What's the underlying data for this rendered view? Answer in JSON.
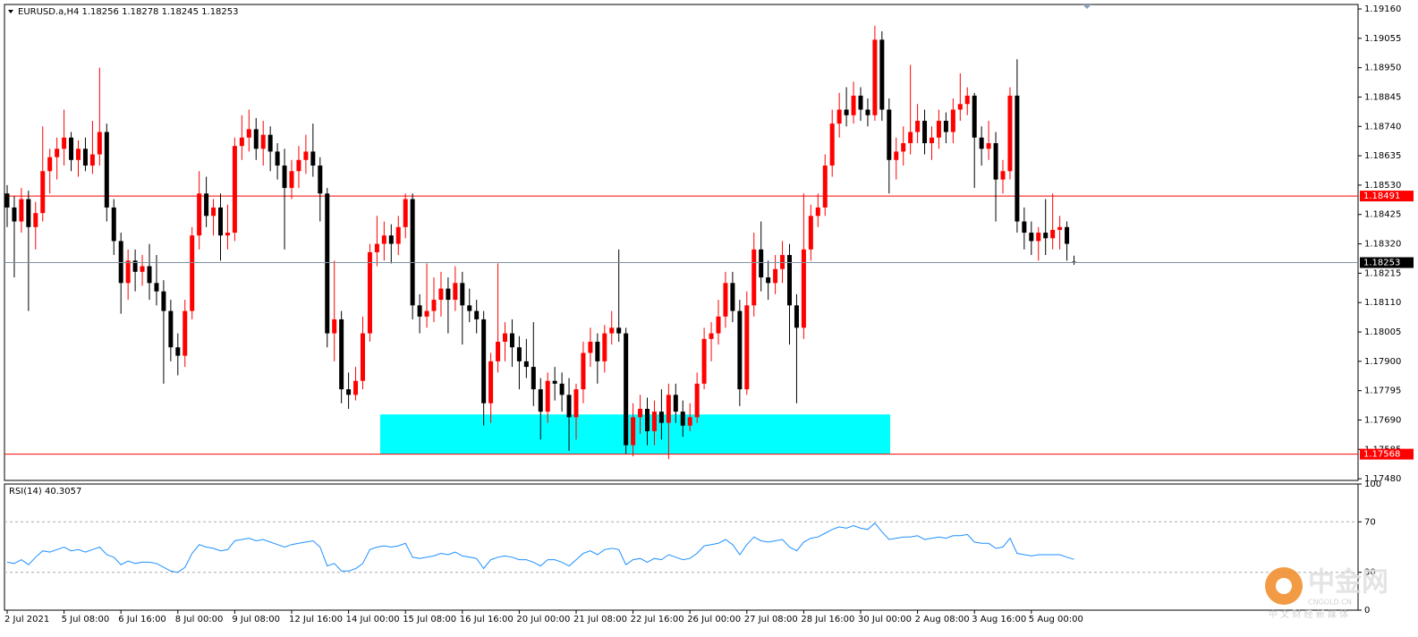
{
  "chart_data": {
    "type": "candlestick",
    "symbol": "EURUSD.a,H4",
    "up_color": "#ff0000",
    "down_color": "#000000",
    "ylim": [
      1.17474,
      1.19176
    ],
    "yticks": [
      {
        "value": 1.1916,
        "label": "1.19160"
      },
      {
        "value": 1.19055,
        "label": "1.19055"
      },
      {
        "value": 1.1895,
        "label": "1.18950"
      },
      {
        "value": 1.18845,
        "label": "1.18845"
      },
      {
        "value": 1.1874,
        "label": "1.18740"
      },
      {
        "value": 1.18635,
        "label": "1.18635"
      },
      {
        "value": 1.1853,
        "label": "1.18530"
      },
      {
        "value": 1.18425,
        "label": "1.18425"
      },
      {
        "value": 1.1832,
        "label": "1.18320"
      },
      {
        "value": 1.18215,
        "label": "1.18215"
      },
      {
        "value": 1.1811,
        "label": "1.18110"
      },
      {
        "value": 1.18005,
        "label": "1.18005"
      },
      {
        "value": 1.179,
        "label": "1.17900"
      },
      {
        "value": 1.17795,
        "label": "1.17795"
      },
      {
        "value": 1.1769,
        "label": "1.17690"
      },
      {
        "value": 1.17585,
        "label": "1.17585"
      },
      {
        "value": 1.1748,
        "label": "1.17480"
      }
    ],
    "levels": [
      {
        "value": 1.18491,
        "color": "#ff0000"
      },
      {
        "value": 1.17568,
        "color": "#ff0000"
      }
    ],
    "current_color": "#8090a0",
    "zone": {
      "high": 1.1771,
      "low": 1.17568,
      "color": "#00ffff"
    },
    "categories": [
      "2 Jul 2021",
      null,
      null,
      null,
      null,
      null,
      null,
      null,
      "5 Jul 08:00",
      null,
      null,
      null,
      null,
      null,
      null,
      null,
      "6 Jul 16:00",
      null,
      null,
      null,
      null,
      null,
      null,
      null,
      "8 Jul 00:00",
      null,
      null,
      null,
      null,
      null,
      null,
      null,
      "9 Jul 08:00",
      null,
      null,
      null,
      null,
      null,
      null,
      null,
      "12 Jul 16:00",
      null,
      null,
      null,
      null,
      null,
      null,
      null,
      "14 Jul 00:00",
      null,
      null,
      null,
      null,
      null,
      null,
      null,
      "15 Jul 08:00",
      null,
      null,
      null,
      null,
      null,
      null,
      null,
      "16 Jul 16:00",
      null,
      null,
      null,
      null,
      null,
      null,
      null,
      "20 Jul 00:00",
      null,
      null,
      null,
      null,
      null,
      null,
      null,
      "21 Jul 08:00",
      null,
      null,
      null,
      null,
      null,
      null,
      null,
      "22 Jul 16:00",
      null,
      null,
      null,
      null,
      null,
      null,
      null,
      "26 Jul 00:00",
      null,
      null,
      null,
      null,
      null,
      null,
      null,
      "27 Jul 08:00",
      null,
      null,
      null,
      null,
      null,
      null,
      null,
      "28 Jul 16:00",
      null,
      null,
      null,
      null,
      null,
      null,
      null,
      "30 Jul 00:00",
      null,
      null,
      null,
      null,
      null,
      null,
      null,
      "2 Aug 08:00",
      null,
      null,
      null,
      null,
      null,
      null,
      null,
      "3 Aug 16:00",
      null,
      null,
      null,
      null,
      null,
      null,
      null,
      "5 Aug 00:00",
      null,
      null,
      null,
      null,
      null,
      null
    ],
    "candles": [
      [
        1.185,
        1.1853,
        1.1838,
        1.1845
      ],
      [
        1.1845,
        1.1849,
        1.182,
        1.184
      ],
      [
        1.184,
        1.1852,
        1.1836,
        1.1848
      ],
      [
        1.1848,
        1.1851,
        1.1808,
        1.1838
      ],
      [
        1.1838,
        1.1847,
        1.183,
        1.1843
      ],
      [
        1.1843,
        1.1874,
        1.184,
        1.1858
      ],
      [
        1.1858,
        1.1866,
        1.185,
        1.1863
      ],
      [
        1.1863,
        1.187,
        1.1855,
        1.1866
      ],
      [
        1.1866,
        1.188,
        1.186,
        1.187
      ],
      [
        1.187,
        1.1872,
        1.1858,
        1.1862
      ],
      [
        1.1862,
        1.1869,
        1.1856,
        1.1866
      ],
      [
        1.1866,
        1.187,
        1.1858,
        1.186
      ],
      [
        1.186,
        1.1876,
        1.1857,
        1.1864
      ],
      [
        1.1864,
        1.1895,
        1.186,
        1.1872
      ],
      [
        1.1872,
        1.1875,
        1.184,
        1.1845
      ],
      [
        1.1845,
        1.1848,
        1.1828,
        1.1833
      ],
      [
        1.1833,
        1.1836,
        1.1807,
        1.1818
      ],
      [
        1.1818,
        1.183,
        1.1812,
        1.1826
      ],
      [
        1.1826,
        1.183,
        1.1815,
        1.1822
      ],
      [
        1.1822,
        1.1828,
        1.1817,
        1.1824
      ],
      [
        1.1824,
        1.1832,
        1.1812,
        1.1818
      ],
      [
        1.1818,
        1.1828,
        1.181,
        1.1815
      ],
      [
        1.1815,
        1.1819,
        1.1782,
        1.1808
      ],
      [
        1.1808,
        1.1812,
        1.179,
        1.1795
      ],
      [
        1.1795,
        1.18,
        1.1785,
        1.1792
      ],
      [
        1.1792,
        1.1812,
        1.1788,
        1.1808
      ],
      [
        1.1808,
        1.1838,
        1.1805,
        1.1835
      ],
      [
        1.1835,
        1.1858,
        1.183,
        1.185
      ],
      [
        1.185,
        1.1856,
        1.1838,
        1.1842
      ],
      [
        1.1842,
        1.1848,
        1.1835,
        1.1845
      ],
      [
        1.1845,
        1.185,
        1.1826,
        1.1835
      ],
      [
        1.1835,
        1.1846,
        1.183,
        1.1836
      ],
      [
        1.1836,
        1.187,
        1.1833,
        1.1867
      ],
      [
        1.1867,
        1.1878,
        1.1862,
        1.187
      ],
      [
        1.187,
        1.188,
        1.1865,
        1.1873
      ],
      [
        1.1873,
        1.1877,
        1.1862,
        1.1866
      ],
      [
        1.1866,
        1.1876,
        1.186,
        1.1871
      ],
      [
        1.1871,
        1.1874,
        1.1858,
        1.1865
      ],
      [
        1.1865,
        1.1868,
        1.1855,
        1.186
      ],
      [
        1.186,
        1.1866,
        1.183,
        1.1852
      ],
      [
        1.1852,
        1.1862,
        1.1848,
        1.1858
      ],
      [
        1.1858,
        1.1867,
        1.1852,
        1.1862
      ],
      [
        1.1862,
        1.1871,
        1.1857,
        1.1865
      ],
      [
        1.1865,
        1.1875,
        1.1856,
        1.186
      ],
      [
        1.186,
        1.1863,
        1.184,
        1.185
      ],
      [
        1.185,
        1.1852,
        1.1795,
        1.18
      ],
      [
        1.18,
        1.1826,
        1.179,
        1.1805
      ],
      [
        1.1805,
        1.1808,
        1.1775,
        1.178
      ],
      [
        1.178,
        1.1786,
        1.1773,
        1.1778
      ],
      [
        1.1778,
        1.1788,
        1.1776,
        1.1783
      ],
      [
        1.1783,
        1.1806,
        1.178,
        1.18
      ],
      [
        1.18,
        1.1832,
        1.1797,
        1.1829
      ],
      [
        1.1829,
        1.1842,
        1.1824,
        1.1832
      ],
      [
        1.1832,
        1.184,
        1.1826,
        1.1835
      ],
      [
        1.1835,
        1.1839,
        1.1825,
        1.1832
      ],
      [
        1.1832,
        1.1842,
        1.1828,
        1.1838
      ],
      [
        1.1838,
        1.185,
        1.1834,
        1.1848
      ],
      [
        1.1848,
        1.185,
        1.1805,
        1.181
      ],
      [
        1.181,
        1.1814,
        1.18,
        1.1806
      ],
      [
        1.1806,
        1.1825,
        1.1802,
        1.1808
      ],
      [
        1.1808,
        1.182,
        1.1804,
        1.1812
      ],
      [
        1.1812,
        1.1822,
        1.1806,
        1.1816
      ],
      [
        1.1816,
        1.182,
        1.18,
        1.1812
      ],
      [
        1.1812,
        1.1824,
        1.1808,
        1.1818
      ],
      [
        1.1818,
        1.1822,
        1.1796,
        1.181
      ],
      [
        1.181,
        1.1816,
        1.1804,
        1.1808
      ],
      [
        1.1808,
        1.1812,
        1.18,
        1.1805
      ],
      [
        1.1805,
        1.1808,
        1.1767,
        1.1775
      ],
      [
        1.1775,
        1.1793,
        1.1768,
        1.179
      ],
      [
        1.179,
        1.1825,
        1.1786,
        1.1797
      ],
      [
        1.1797,
        1.1804,
        1.179,
        1.18
      ],
      [
        1.18,
        1.1805,
        1.1788,
        1.1795
      ],
      [
        1.1795,
        1.1799,
        1.178,
        1.179
      ],
      [
        1.179,
        1.1798,
        1.1784,
        1.1788
      ],
      [
        1.1788,
        1.1804,
        1.1774,
        1.178
      ],
      [
        1.178,
        1.1784,
        1.1762,
        1.1772
      ],
      [
        1.1772,
        1.1786,
        1.1768,
        1.1783
      ],
      [
        1.1783,
        1.1788,
        1.1776,
        1.1782
      ],
      [
        1.1782,
        1.1786,
        1.1772,
        1.1778
      ],
      [
        1.1778,
        1.1784,
        1.1758,
        1.177
      ],
      [
        1.177,
        1.1782,
        1.1762,
        1.178
      ],
      [
        1.178,
        1.1797,
        1.1775,
        1.1793
      ],
      [
        1.1793,
        1.1802,
        1.1788,
        1.1797
      ],
      [
        1.1797,
        1.18,
        1.1782,
        1.179
      ],
      [
        1.179,
        1.1803,
        1.1786,
        1.18
      ],
      [
        1.18,
        1.1808,
        1.1796,
        1.1802
      ],
      [
        1.1802,
        1.183,
        1.1797,
        1.18
      ],
      [
        1.18,
        1.1802,
        1.1757,
        1.176
      ],
      [
        1.176,
        1.1775,
        1.1756,
        1.177
      ],
      [
        1.177,
        1.1778,
        1.1764,
        1.1773
      ],
      [
        1.1773,
        1.1777,
        1.176,
        1.1765
      ],
      [
        1.1765,
        1.1776,
        1.176,
        1.1772
      ],
      [
        1.1772,
        1.178,
        1.1762,
        1.1768
      ],
      [
        1.1768,
        1.1782,
        1.1755,
        1.1778
      ],
      [
        1.1778,
        1.1782,
        1.1768,
        1.1772
      ],
      [
        1.1772,
        1.1776,
        1.1763,
        1.1767
      ],
      [
        1.1767,
        1.1775,
        1.1765,
        1.177
      ],
      [
        1.177,
        1.1786,
        1.1768,
        1.1782
      ],
      [
        1.1782,
        1.1802,
        1.178,
        1.1798
      ],
      [
        1.1798,
        1.1804,
        1.179,
        1.18
      ],
      [
        1.18,
        1.1812,
        1.1796,
        1.1806
      ],
      [
        1.1806,
        1.1822,
        1.1802,
        1.1818
      ],
      [
        1.1818,
        1.1822,
        1.1804,
        1.1808
      ],
      [
        1.1808,
        1.1812,
        1.1774,
        1.178
      ],
      [
        1.178,
        1.1815,
        1.1778,
        1.181
      ],
      [
        1.181,
        1.1836,
        1.1806,
        1.183
      ],
      [
        1.183,
        1.184,
        1.1815,
        1.182
      ],
      [
        1.182,
        1.1826,
        1.1812,
        1.1818
      ],
      [
        1.1818,
        1.1828,
        1.1814,
        1.1823
      ],
      [
        1.1823,
        1.1833,
        1.1818,
        1.1828
      ],
      [
        1.1828,
        1.1832,
        1.1796,
        1.181
      ],
      [
        1.181,
        1.1814,
        1.1775,
        1.1802
      ],
      [
        1.1802,
        1.185,
        1.1798,
        1.183
      ],
      [
        1.183,
        1.1846,
        1.1826,
        1.1842
      ],
      [
        1.1842,
        1.185,
        1.1838,
        1.1845
      ],
      [
        1.1845,
        1.1864,
        1.1842,
        1.186
      ],
      [
        1.186,
        1.188,
        1.1856,
        1.1875
      ],
      [
        1.1875,
        1.1886,
        1.187,
        1.188
      ],
      [
        1.188,
        1.1888,
        1.1874,
        1.1878
      ],
      [
        1.1878,
        1.189,
        1.1875,
        1.1885
      ],
      [
        1.1885,
        1.1888,
        1.1876,
        1.188
      ],
      [
        1.188,
        1.1884,
        1.1874,
        1.1878
      ],
      [
        1.1878,
        1.191,
        1.1876,
        1.1905
      ],
      [
        1.1905,
        1.1908,
        1.1876,
        1.188
      ],
      [
        1.188,
        1.1884,
        1.185,
        1.1862
      ],
      [
        1.1862,
        1.187,
        1.1855,
        1.1865
      ],
      [
        1.1865,
        1.1874,
        1.186,
        1.1868
      ],
      [
        1.1868,
        1.1896,
        1.1864,
        1.1872
      ],
      [
        1.1872,
        1.1882,
        1.1868,
        1.1876
      ],
      [
        1.1876,
        1.188,
        1.1864,
        1.1868
      ],
      [
        1.1868,
        1.1874,
        1.1862,
        1.187
      ],
      [
        1.187,
        1.188,
        1.1866,
        1.1876
      ],
      [
        1.1876,
        1.1879,
        1.1868,
        1.1872
      ],
      [
        1.1872,
        1.1884,
        1.1868,
        1.188
      ],
      [
        1.188,
        1.1893,
        1.1876,
        1.1882
      ],
      [
        1.1882,
        1.1888,
        1.1878,
        1.1885
      ],
      [
        1.1885,
        1.1886,
        1.1852,
        1.187
      ],
      [
        1.187,
        1.1874,
        1.186,
        1.1866
      ],
      [
        1.1866,
        1.1876,
        1.1862,
        1.1868
      ],
      [
        1.1868,
        1.1872,
        1.184,
        1.1855
      ],
      [
        1.1855,
        1.1862,
        1.185,
        1.1858
      ],
      [
        1.1858,
        1.1888,
        1.1855,
        1.1885
      ],
      [
        1.1885,
        1.1898,
        1.1836,
        1.184
      ],
      [
        1.184,
        1.1845,
        1.183,
        1.1836
      ],
      [
        1.1836,
        1.184,
        1.1828,
        1.1833
      ],
      [
        1.1833,
        1.1838,
        1.1826,
        1.1836
      ],
      [
        1.1836,
        1.1848,
        1.1828,
        1.1834
      ],
      [
        1.1834,
        1.185,
        1.183,
        1.1837
      ],
      [
        1.1837,
        1.1842,
        1.183,
        1.1838
      ],
      [
        1.1838,
        1.184,
        1.1826,
        1.1832
      ],
      [
        1.18256,
        1.18278,
        1.18245,
        1.18253
      ]
    ],
    "rsi": {
      "name": "RSI(14)",
      "color": "#1e90ff",
      "ylim": [
        0,
        100
      ],
      "yticks": [
        100,
        70,
        30,
        0
      ],
      "levels": [
        70,
        30
      ],
      "values": [
        38,
        37,
        40,
        36,
        42,
        47,
        46,
        48,
        50,
        47,
        48,
        46,
        48,
        50,
        44,
        42,
        36,
        39,
        37,
        38,
        38,
        37,
        34,
        31,
        30,
        34,
        45,
        52,
        50,
        49,
        47,
        48,
        55,
        56,
        57,
        55,
        56,
        54,
        52,
        50,
        52,
        53,
        54,
        55,
        50,
        35,
        37,
        31,
        31,
        33,
        37,
        48,
        50,
        51,
        50,
        51,
        53,
        42,
        41,
        42,
        43,
        45,
        44,
        46,
        43,
        42,
        41,
        33,
        40,
        42,
        43,
        42,
        40,
        40,
        38,
        35,
        40,
        40,
        38,
        35,
        40,
        45,
        47,
        44,
        48,
        49,
        48,
        36,
        40,
        41,
        38,
        41,
        40,
        44,
        42,
        40,
        41,
        45,
        51,
        52,
        53,
        56,
        52,
        44,
        52,
        58,
        55,
        54,
        55,
        56,
        50,
        47,
        54,
        57,
        58,
        61,
        64,
        66,
        65,
        67,
        65,
        64,
        69,
        62,
        56,
        57,
        58,
        58,
        59,
        56,
        57,
        58,
        57,
        59,
        59,
        60,
        54,
        53,
        53,
        49,
        50,
        57,
        45,
        44,
        43,
        44,
        44,
        44,
        44,
        42,
        40.3057
      ]
    }
  },
  "watermark": {
    "name": "中金网",
    "site": "CNGOLD.CN",
    "slogan": "中 文 财 经 新 媒 体"
  }
}
